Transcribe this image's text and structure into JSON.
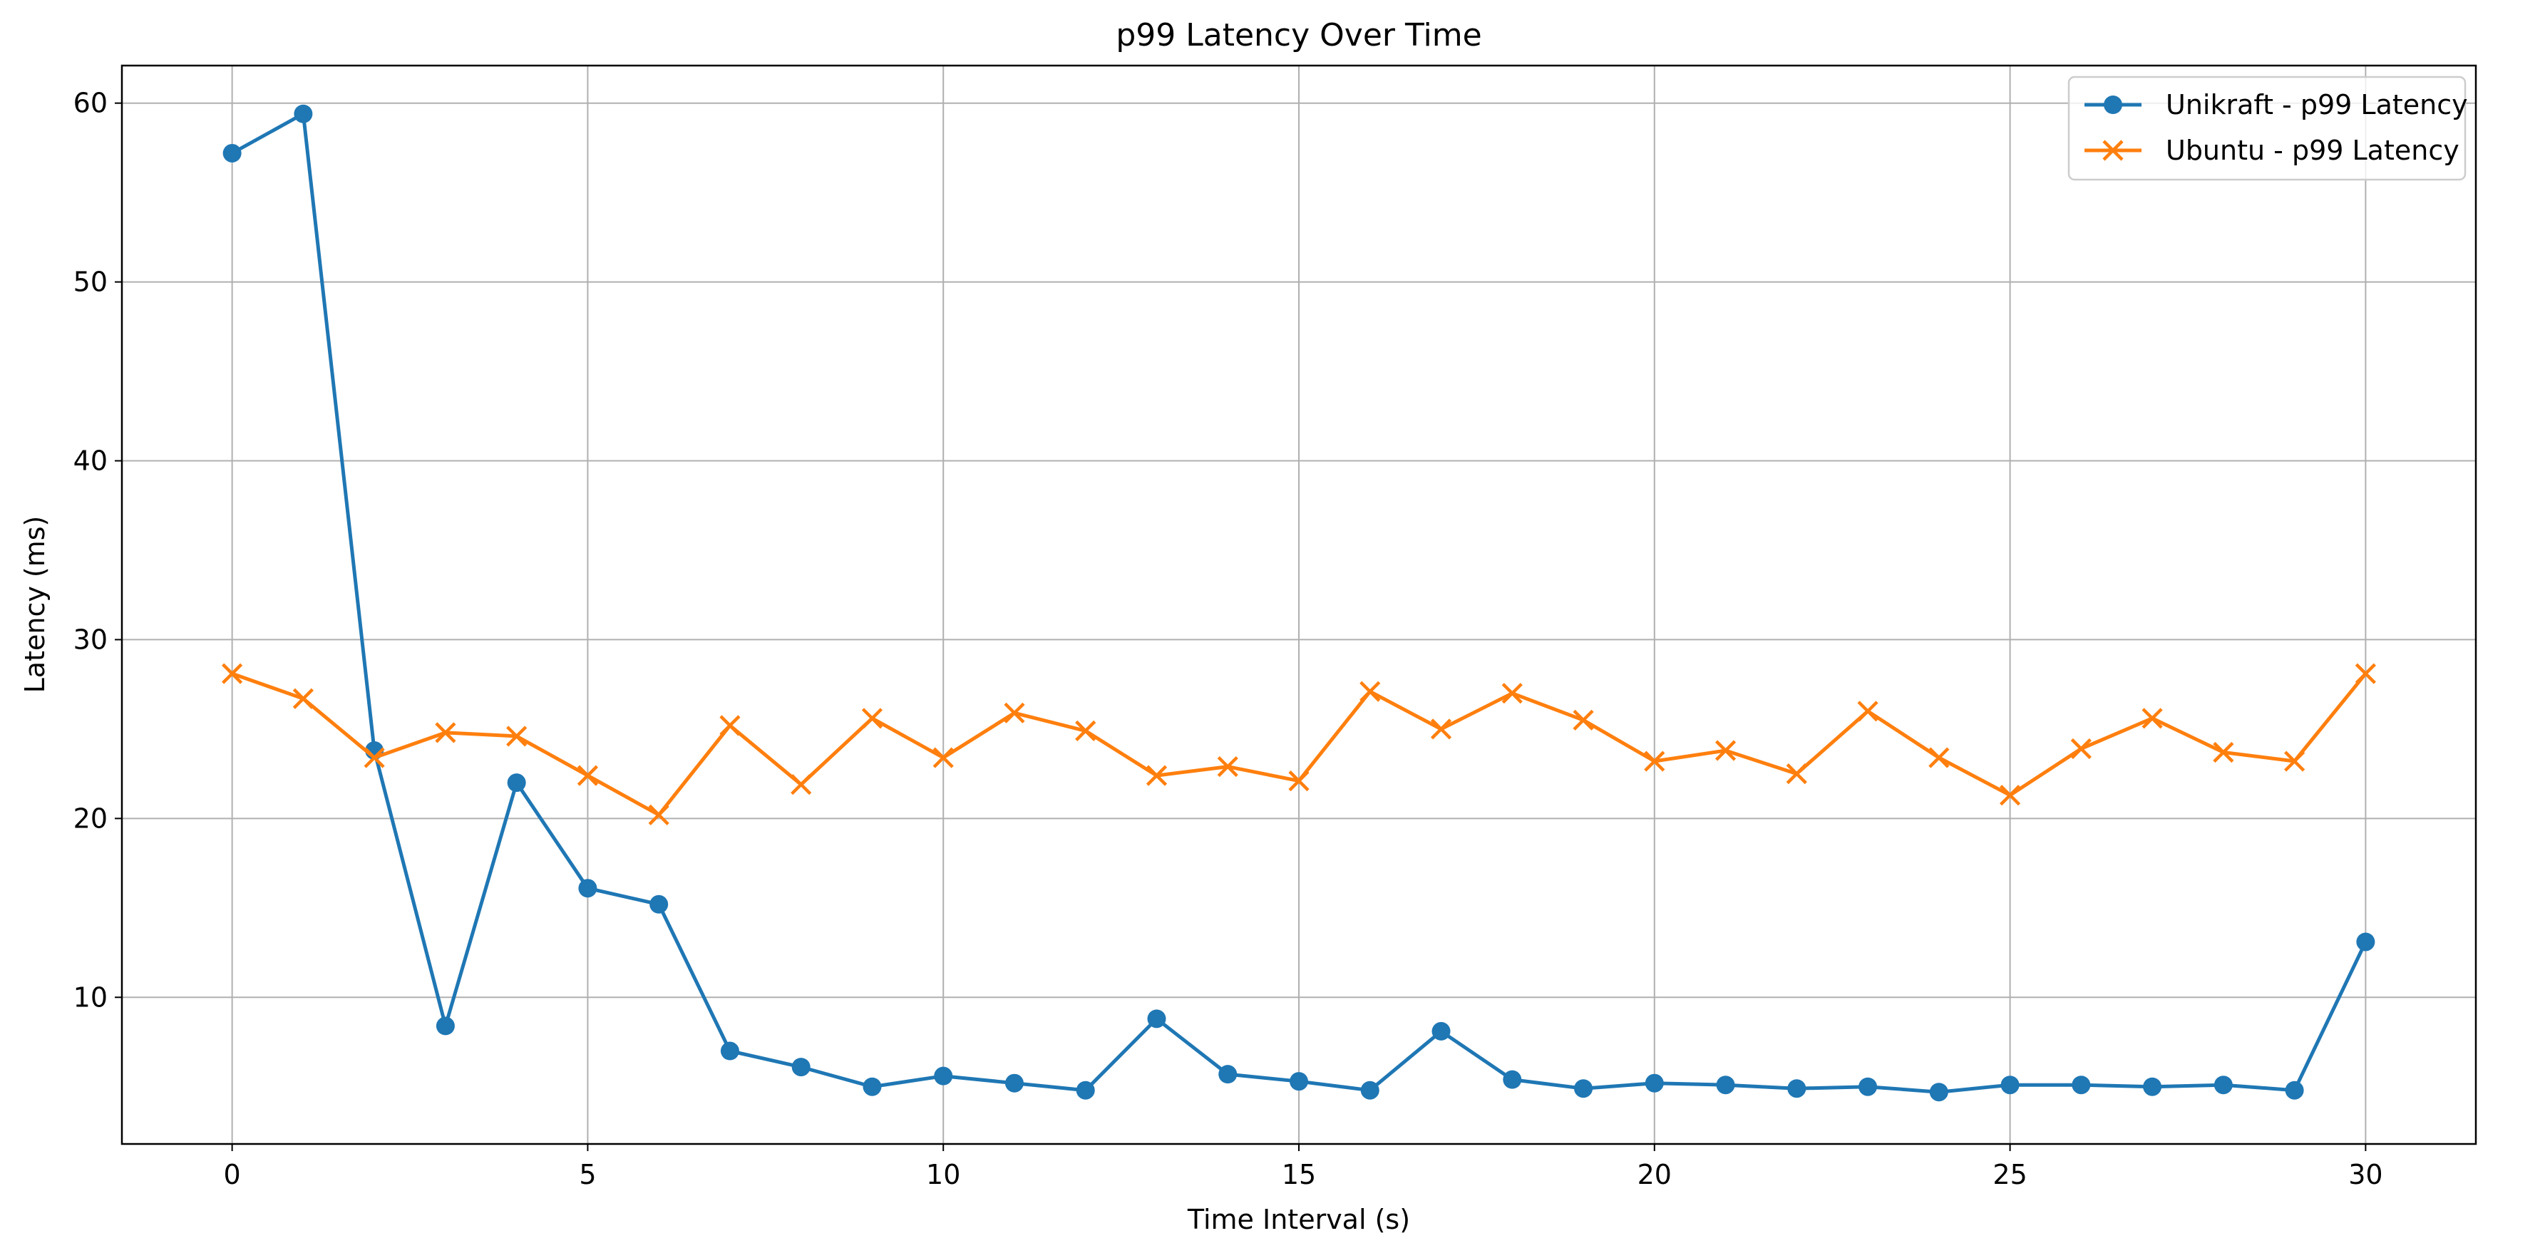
{
  "chart_data": {
    "type": "line",
    "title": "p99 Latency Over Time",
    "xlabel": "Time Interval (s)",
    "ylabel": "Latency (ms)",
    "xlim": [
      -1.55,
      31.55
    ],
    "ylim": [
      1.8,
      62.1
    ],
    "xticks": [
      0,
      5,
      10,
      15,
      20,
      25,
      30
    ],
    "yticks": [
      10,
      20,
      30,
      40,
      50,
      60
    ],
    "grid": true,
    "legend_position": "top-right",
    "x": [
      0,
      1,
      2,
      3,
      4,
      5,
      6,
      7,
      8,
      9,
      10,
      11,
      12,
      13,
      14,
      15,
      16,
      17,
      18,
      19,
      20,
      21,
      22,
      23,
      24,
      25,
      26,
      27,
      28,
      29,
      30
    ],
    "series": [
      {
        "name": "Unikraft - p99 Latency",
        "color": "#1f77b4",
        "marker": "circle",
        "values": [
          57.2,
          59.4,
          23.8,
          8.4,
          22.0,
          16.1,
          15.2,
          7.0,
          6.1,
          5.0,
          5.6,
          5.2,
          4.8,
          8.8,
          5.7,
          5.3,
          4.8,
          8.1,
          5.4,
          4.9,
          5.2,
          5.1,
          4.9,
          5.0,
          4.7,
          5.1,
          5.1,
          5.0,
          5.1,
          4.8,
          13.1
        ]
      },
      {
        "name": "Ubuntu - p99 Latency",
        "color": "#ff7f0e",
        "marker": "x",
        "values": [
          28.1,
          26.7,
          23.4,
          24.8,
          24.6,
          22.4,
          20.2,
          25.2,
          21.9,
          25.6,
          23.4,
          25.9,
          24.9,
          22.4,
          22.9,
          22.1,
          27.1,
          25.0,
          27.0,
          25.5,
          23.2,
          23.8,
          22.5,
          26.0,
          23.4,
          21.3,
          23.9,
          25.6,
          23.7,
          23.2,
          28.1
        ]
      }
    ]
  }
}
